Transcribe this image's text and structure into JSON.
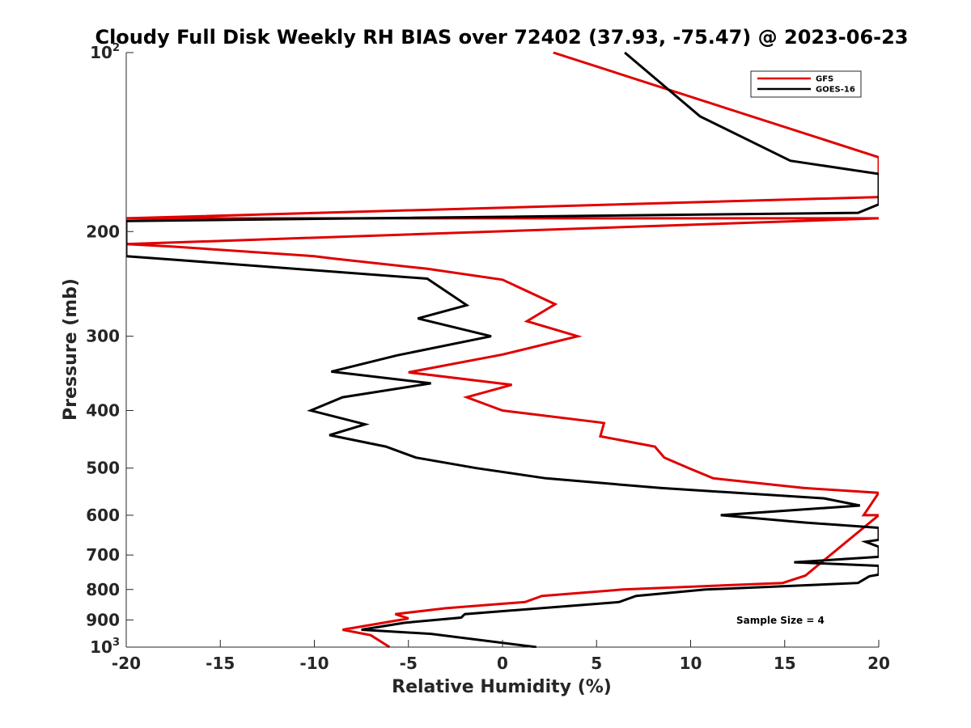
{
  "chart_data": {
    "type": "line",
    "title": "Cloudy Full Disk Weekly RH BIAS over 72402 (37.93, -75.47) @ 2023-06-23",
    "xlabel": "Relative Humidity (%)",
    "ylabel": "Pressure (mb)",
    "xlim": [
      -20,
      20
    ],
    "ylim": [
      100,
      1000
    ],
    "y_scale": "log",
    "y_reversed": true,
    "grid": false,
    "legend_position": "top-right",
    "annotation": "Sample Size = 4",
    "x_ticks": [
      "-20",
      "-15",
      "-10",
      "-5",
      "0",
      "5",
      "10",
      "15",
      "20"
    ],
    "y_ticks": [
      {
        "value": 100,
        "base": "10",
        "exp": "2"
      },
      {
        "value": 200,
        "label": "200"
      },
      {
        "value": 300,
        "label": "300"
      },
      {
        "value": 400,
        "label": "400"
      },
      {
        "value": 500,
        "label": "500"
      },
      {
        "value": 600,
        "label": "600"
      },
      {
        "value": 700,
        "label": "700"
      },
      {
        "value": 800,
        "label": "800"
      },
      {
        "value": 900,
        "label": "900"
      },
      {
        "value": 1000,
        "base": "10",
        "exp": "3"
      }
    ],
    "series": [
      {
        "name": "GFS",
        "color": "#e00000",
        "points": [
          [
            2.7,
            100
          ],
          [
            20,
            150
          ],
          [
            20,
            175
          ],
          [
            -20,
            190
          ],
          [
            20,
            190
          ],
          [
            -20,
            210
          ],
          [
            -17.5,
            212
          ],
          [
            -10,
            220
          ],
          [
            -9,
            222
          ],
          [
            -4,
            231
          ],
          [
            0,
            241
          ],
          [
            2.8,
            265
          ],
          [
            1.3,
            283
          ],
          [
            4,
            300
          ],
          [
            0,
            322
          ],
          [
            -5,
            345
          ],
          [
            0.5,
            362
          ],
          [
            -1.9,
            380
          ],
          [
            0,
            400
          ],
          [
            5.2,
            419
          ],
          [
            5.4,
            420
          ],
          [
            5.2,
            442
          ],
          [
            8.1,
            460
          ],
          [
            8.6,
            480
          ],
          [
            9.9,
            500
          ],
          [
            11.2,
            520
          ],
          [
            16,
            540
          ],
          [
            20,
            550
          ],
          [
            19.2,
            600
          ],
          [
            20,
            600
          ],
          [
            16.1,
            758
          ],
          [
            14.9,
            780
          ],
          [
            6.4,
            800
          ],
          [
            2.1,
            820
          ],
          [
            1.2,
            840
          ],
          [
            -3,
            860
          ],
          [
            -5.7,
            880
          ],
          [
            -5,
            895
          ],
          [
            -8.5,
            935
          ],
          [
            -7,
            955
          ],
          [
            -6,
            1000
          ]
        ]
      },
      {
        "name": "GOES-16",
        "color": "#000000",
        "points": [
          [
            6.5,
            100
          ],
          [
            10.5,
            128
          ],
          [
            15.3,
            152
          ],
          [
            20,
            160
          ],
          [
            20,
            180
          ],
          [
            18.9,
            186
          ],
          [
            -20,
            192
          ],
          [
            -20,
            220
          ],
          [
            -17.5,
            223
          ],
          [
            -4,
            240
          ],
          [
            -1.9,
            266
          ],
          [
            -4.5,
            280
          ],
          [
            -0.6,
            300
          ],
          [
            -5.6,
            323
          ],
          [
            -9.1,
            344
          ],
          [
            -3.8,
            360
          ],
          [
            -8.5,
            380
          ],
          [
            -10.2,
            400
          ],
          [
            -7.3,
            422
          ],
          [
            -9.2,
            440
          ],
          [
            -6.2,
            460
          ],
          [
            -4.6,
            480
          ],
          [
            -1.4,
            500
          ],
          [
            2.3,
            520
          ],
          [
            8.4,
            540
          ],
          [
            17.1,
            562
          ],
          [
            19,
            578
          ],
          [
            11.6,
            600
          ],
          [
            16,
            617
          ],
          [
            20,
            630
          ],
          [
            20,
            660
          ],
          [
            19.3,
            665
          ],
          [
            20,
            678
          ],
          [
            20,
            705
          ],
          [
            15.5,
            720
          ],
          [
            20,
            730
          ],
          [
            20,
            755
          ],
          [
            19.5,
            760
          ],
          [
            18.9,
            780
          ],
          [
            10.8,
            800
          ],
          [
            7.1,
            820
          ],
          [
            6.2,
            840
          ],
          [
            -2,
            880
          ],
          [
            -2.2,
            892
          ],
          [
            -5.2,
            910
          ],
          [
            -7.5,
            935
          ],
          [
            -3.8,
            950
          ],
          [
            1.8,
            1000
          ]
        ]
      }
    ]
  }
}
